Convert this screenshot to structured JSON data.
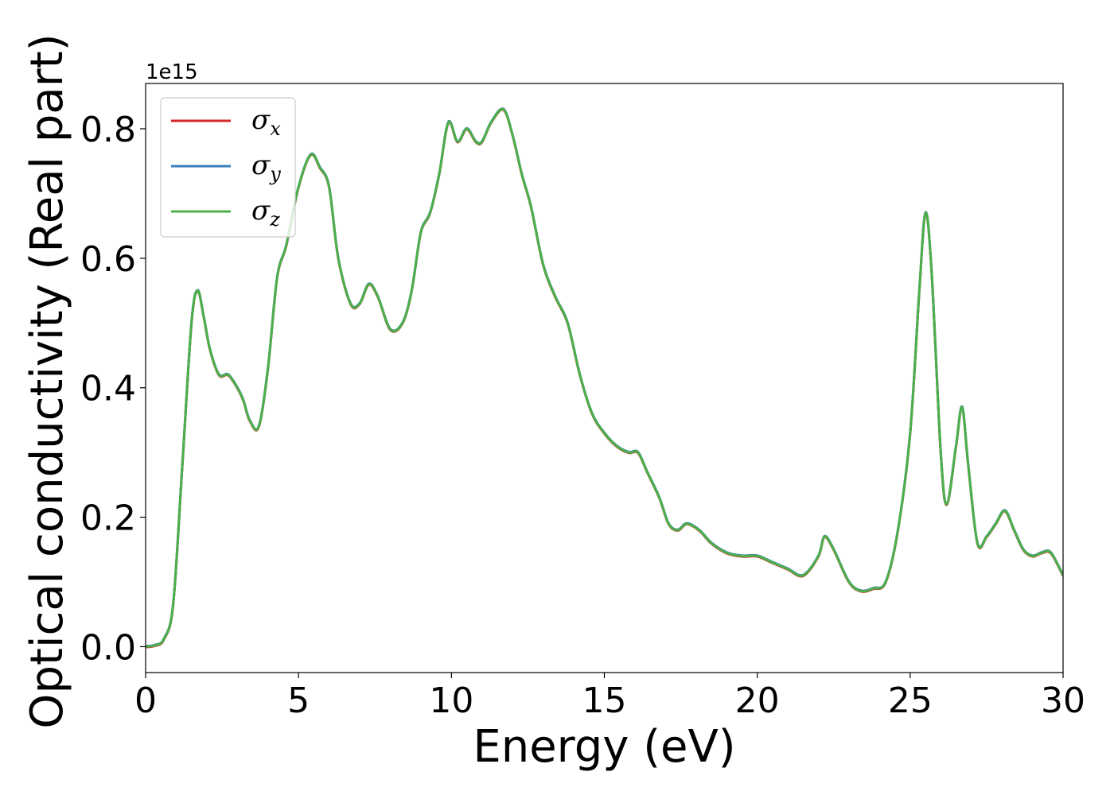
{
  "chart_data": {
    "type": "line",
    "xlabel": "Energy (eV)",
    "ylabel": "Optical conductivity (Real part)",
    "y_offset_label": "1e15",
    "xlim": [
      0,
      30
    ],
    "ylim": [
      -0.04,
      0.87
    ],
    "xticks": [
      0,
      5,
      10,
      15,
      20,
      25,
      30
    ],
    "xtick_labels": [
      "0",
      "5",
      "10",
      "15",
      "20",
      "25",
      "30"
    ],
    "yticks": [
      0.0,
      0.2,
      0.4,
      0.6,
      0.8
    ],
    "ytick_labels": [
      "0.0",
      "0.2",
      "0.4",
      "0.6",
      "0.8"
    ],
    "grid": false,
    "legend_placement": "top-left",
    "series": [
      {
        "name": "σ",
        "subscript": "x",
        "color": "#d62728"
      },
      {
        "name": "σ",
        "subscript": "y",
        "color": "#377eb8"
      },
      {
        "name": "σ",
        "subscript": "z",
        "color": "#4daf4a"
      }
    ],
    "x": [
      0,
      0.3,
      0.6,
      0.9,
      1.2,
      1.5,
      1.7,
      1.9,
      2.1,
      2.4,
      2.7,
      3.0,
      3.2,
      3.4,
      3.7,
      4.0,
      4.3,
      4.6,
      5.0,
      5.4,
      5.7,
      6.0,
      6.3,
      6.7,
      7.0,
      7.3,
      7.6,
      8.0,
      8.4,
      8.7,
      9.0,
      9.3,
      9.6,
      9.9,
      10.2,
      10.5,
      10.8,
      11.0,
      11.3,
      11.7,
      12.0,
      12.3,
      12.6,
      13.0,
      13.4,
      13.8,
      14.2,
      14.6,
      15.0,
      15.4,
      15.8,
      16.1,
      16.4,
      16.8,
      17.1,
      17.4,
      17.7,
      18.1,
      18.5,
      19.0,
      19.5,
      20.0,
      20.5,
      21.0,
      21.5,
      22.0,
      22.2,
      22.5,
      23.0,
      23.4,
      23.8,
      24.2,
      24.6,
      25.0,
      25.3,
      25.5,
      25.7,
      26.0,
      26.2,
      26.5,
      26.7,
      26.9,
      27.2,
      27.5,
      27.8,
      28.1,
      28.4,
      28.7,
      29.0,
      29.3,
      29.6,
      30.0
    ],
    "values": [
      0.0,
      0.002,
      0.012,
      0.065,
      0.28,
      0.5,
      0.55,
      0.51,
      0.46,
      0.42,
      0.42,
      0.4,
      0.38,
      0.35,
      0.34,
      0.43,
      0.57,
      0.62,
      0.71,
      0.76,
      0.74,
      0.71,
      0.6,
      0.53,
      0.53,
      0.56,
      0.54,
      0.49,
      0.5,
      0.55,
      0.64,
      0.67,
      0.73,
      0.81,
      0.78,
      0.8,
      0.78,
      0.78,
      0.81,
      0.83,
      0.79,
      0.73,
      0.68,
      0.59,
      0.54,
      0.5,
      0.42,
      0.36,
      0.33,
      0.31,
      0.3,
      0.3,
      0.27,
      0.23,
      0.19,
      0.18,
      0.19,
      0.18,
      0.16,
      0.145,
      0.14,
      0.14,
      0.13,
      0.12,
      0.11,
      0.14,
      0.17,
      0.15,
      0.1,
      0.086,
      0.09,
      0.1,
      0.18,
      0.33,
      0.55,
      0.67,
      0.58,
      0.3,
      0.22,
      0.31,
      0.37,
      0.28,
      0.16,
      0.17,
      0.19,
      0.21,
      0.18,
      0.15,
      0.14,
      0.145,
      0.145,
      0.11
    ]
  }
}
